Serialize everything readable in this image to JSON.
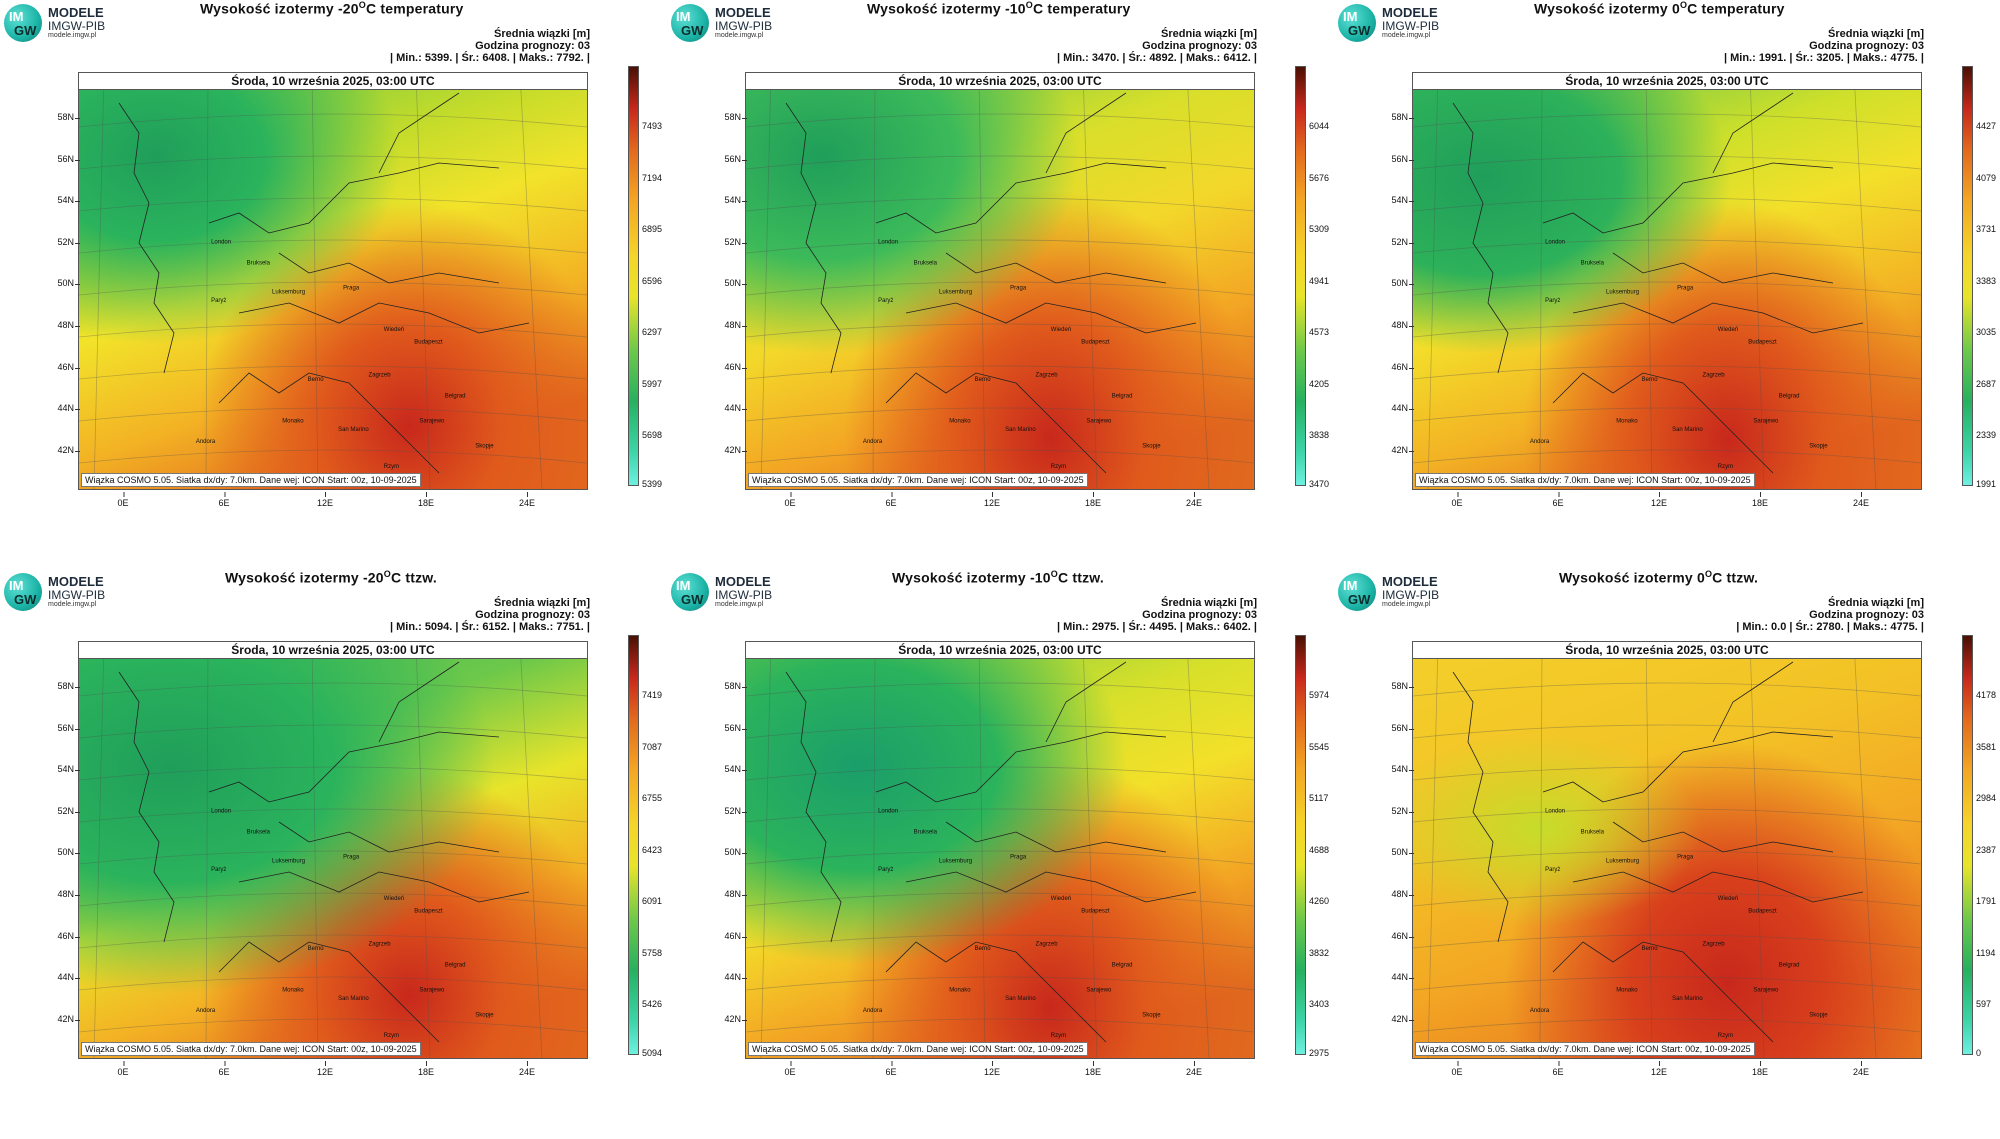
{
  "logo": {
    "circle_line1": "IM",
    "circle_line2": "GW",
    "name": "MODELE",
    "org": "IMGW-PIB",
    "url": "modele.imgw.pl"
  },
  "shared": {
    "date": "Środa, 10 września 2025, 03:00 UTC",
    "info_line1": "Średnia wiązki [m]",
    "info_line2": "Godzina prognozy: 03",
    "footer": "Wiązka COSMO 5.05. Siatka dx/dy: 7.0km. Dane wej: ICON Start: 00z, 10-09-2025",
    "lat_labels": [
      "58N",
      "56N",
      "54N",
      "52N",
      "50N",
      "48N",
      "46N",
      "44N",
      "42N"
    ],
    "lon_labels": [
      "0E",
      "6E",
      "12E",
      "18E",
      "24E"
    ],
    "cities": [
      "London",
      "Bruksela",
      "Paryż",
      "Luksemburg",
      "Praga",
      "Wiedeń",
      "Budapeszt",
      "Berno",
      "Zagrzeb",
      "Belgrad",
      "San Marino",
      "Sarajewo",
      "Monako",
      "Andora",
      "Rzym",
      "Skopje"
    ]
  },
  "colors": {
    "low": "#3fe0c8",
    "green": "#2bb35c",
    "yellow": "#f2e32a",
    "orange": "#f0901e",
    "red": "#c8281c",
    "darkred": "#5a1408"
  },
  "panels": [
    {
      "title_pre": "Wysokość izotermy -20",
      "title_sup": "O",
      "title_post": "C temperatury",
      "stats": "| Min.:    5399. | Śr.:    6408. | Maks.:    7792. |",
      "colorbar": [
        "7493",
        "7194",
        "6895",
        "6596",
        "6297",
        "5997",
        "5698",
        "5399"
      ]
    },
    {
      "title_pre": "Wysokość izotermy -10",
      "title_sup": "O",
      "title_post": "C temperatury",
      "stats": "| Min.:    3470. | Śr.:    4892. | Maks.:    6412. |",
      "colorbar": [
        "6044",
        "5676",
        "5309",
        "4941",
        "4573",
        "4205",
        "3838",
        "3470"
      ]
    },
    {
      "title_pre": "Wysokość izotermy 0",
      "title_sup": "O",
      "title_post": "C temperatury",
      "stats": "| Min.:    1991. | Śr.:    3205. | Maks.:    4775. |",
      "colorbar": [
        "4427",
        "4079",
        "3731",
        "3383",
        "3035",
        "2687",
        "2339",
        "1991"
      ]
    },
    {
      "title_pre": "Wysokość izotermy -20",
      "title_sup": "O",
      "title_post": "C ttzw.",
      "stats": "| Min.:    5094. | Śr.:    6152. | Maks.:    7751. |",
      "colorbar": [
        "7419",
        "7087",
        "6755",
        "6423",
        "6091",
        "5758",
        "5426",
        "5094"
      ]
    },
    {
      "title_pre": "Wysokość izotermy -10",
      "title_sup": "O",
      "title_post": "C ttzw.",
      "stats": "| Min.:    2975. | Śr.:    4495. | Maks.:    6402. |",
      "colorbar": [
        "5974",
        "5545",
        "5117",
        "4688",
        "4260",
        "3832",
        "3403",
        "2975"
      ]
    },
    {
      "title_pre": "Wysokość izotermy 0",
      "title_sup": "O",
      "title_post": "C ttzw.",
      "stats": "| Min.:     0.0 | Śr.:    2780. | Maks.:    4775. |",
      "colorbar": [
        "4178",
        "3581",
        "2984",
        "2387",
        "1791",
        "1194",
        "597",
        "0"
      ]
    }
  ]
}
